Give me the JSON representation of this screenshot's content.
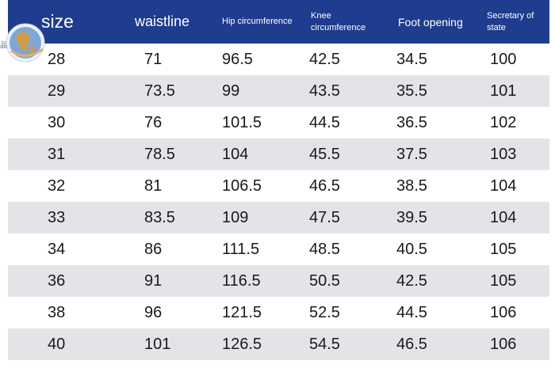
{
  "headers": {
    "size": "size",
    "waistline": "waistline",
    "hip": "Hip circumference",
    "knee": "Knee circumference",
    "foot": "Foot opening",
    "secretary": "Secretary of state"
  },
  "rows": [
    {
      "size": "28",
      "waistline": "71",
      "hip": "96.5",
      "knee": "42.5",
      "foot": "34.5",
      "secretary": "100"
    },
    {
      "size": "29",
      "waistline": "73.5",
      "hip": "99",
      "knee": "43.5",
      "foot": "35.5",
      "secretary": "101"
    },
    {
      "size": "30",
      "waistline": "76",
      "hip": "101.5",
      "knee": "44.5",
      "foot": "36.5",
      "secretary": "102"
    },
    {
      "size": "31",
      "waistline": "78.5",
      "hip": "104",
      "knee": "45.5",
      "foot": "37.5",
      "secretary": "103"
    },
    {
      "size": "32",
      "waistline": "81",
      "hip": "106.5",
      "knee": "46.5",
      "foot": "38.5",
      "secretary": "104"
    },
    {
      "size": "33",
      "waistline": "83.5",
      "hip": "109",
      "knee": "47.5",
      "foot": "39.5",
      "secretary": "104"
    },
    {
      "size": "34",
      "waistline": "86",
      "hip": "111.5",
      "knee": "48.5",
      "foot": "40.5",
      "secretary": "105"
    },
    {
      "size": "36",
      "waistline": "91",
      "hip": "116.5",
      "knee": "50.5",
      "foot": "42.5",
      "secretary": "105"
    },
    {
      "size": "38",
      "waistline": "96",
      "hip": "121.5",
      "knee": "52.5",
      "foot": "44.5",
      "secretary": "106"
    },
    {
      "size": "40",
      "waistline": "101",
      "hip": "126.5",
      "knee": "54.5",
      "foot": "46.5",
      "secretary": "106"
    }
  ],
  "colors": {
    "header_bg": "#1f3d8e",
    "header_text": "#ffffff",
    "row_alt_bg": "#e4e4e8",
    "row_bg": "#ffffff",
    "cell_text": "#1a1a1a"
  },
  "logo": {
    "icon": "globe-badge-icon",
    "text": "品"
  }
}
